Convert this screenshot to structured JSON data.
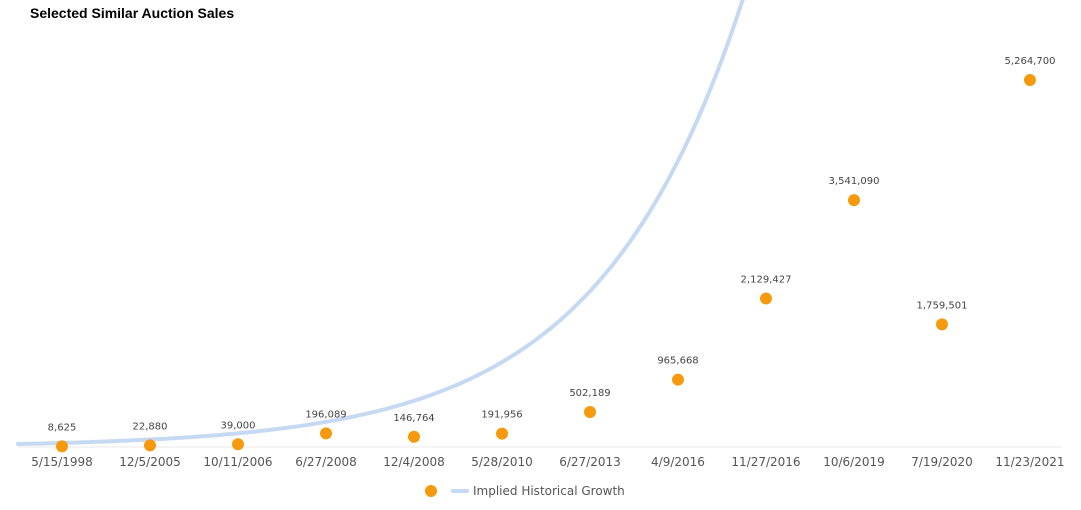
{
  "chart_data": {
    "type": "scatter",
    "title": "Selected Similar Auction Sales",
    "categories": [
      "5/15/1998",
      "12/5/2005",
      "10/11/2006",
      "6/27/2008",
      "12/4/2008",
      "5/28/2010",
      "6/27/2013",
      "4/9/2016",
      "11/27/2016",
      "10/6/2019",
      "7/19/2020",
      "11/23/2021"
    ],
    "values": [
      8625,
      22880,
      39000,
      196089,
      146764,
      191956,
      502189,
      965668,
      2129427,
      3541090,
      1759501,
      5264700
    ],
    "data_labels": [
      "8,625",
      "22,880",
      "39,000",
      "196,089",
      "146,764",
      "191,956",
      "502,189",
      "965,668",
      "2,129,427",
      "3,541,090",
      "1,759,501",
      "5,264,700"
    ],
    "point_color": "#f59a0f",
    "trend": {
      "name": "Implied Historical Growth",
      "type": "exponential",
      "color": "#c6d9f2"
    },
    "legend": {
      "position": "bottom",
      "line_label": "Implied Historical Growth"
    },
    "grid": false
  }
}
